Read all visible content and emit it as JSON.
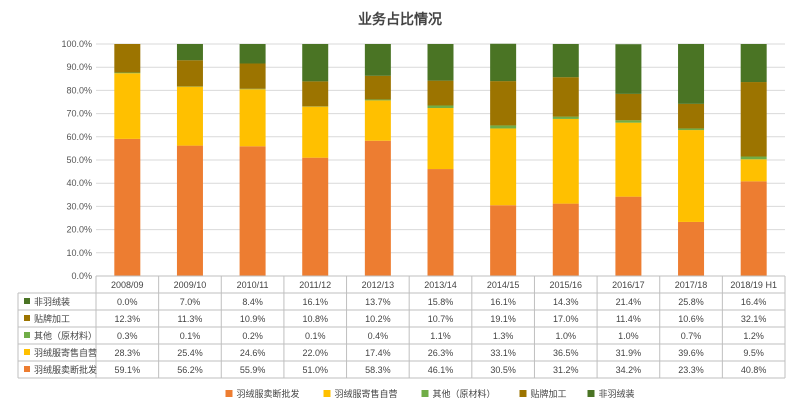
{
  "chart_data": {
    "type": "bar",
    "stacked": true,
    "title": "业务占比情况",
    "categories": [
      "2008/09",
      "2009/10",
      "2010/11",
      "2011/12",
      "2012/13",
      "2013/14",
      "2014/15",
      "2015/16",
      "2016/17",
      "2017/18",
      "2018/19 H1"
    ],
    "y_ticks": [
      "0.0%",
      "10.0%",
      "20.0%",
      "30.0%",
      "40.0%",
      "50.0%",
      "60.0%",
      "70.0%",
      "80.0%",
      "90.0%",
      "100.0%"
    ],
    "ylim": [
      0,
      100
    ],
    "grid": true,
    "legend_position": "bottom",
    "series": [
      {
        "name": "羽绒服卖断批发",
        "color": "#ED7D31",
        "values": [
          59.1,
          56.2,
          55.9,
          51.0,
          58.3,
          46.1,
          30.5,
          31.2,
          34.2,
          23.3,
          40.8
        ],
        "labels": [
          "59.1%",
          "56.2%",
          "55.9%",
          "51.0%",
          "58.3%",
          "46.1%",
          "30.5%",
          "31.2%",
          "34.2%",
          "23.3%",
          "40.8%"
        ]
      },
      {
        "name": "羽绒服寄售自营",
        "color": "#FFC000",
        "values": [
          28.3,
          25.4,
          24.6,
          22.0,
          17.4,
          26.3,
          33.1,
          36.5,
          31.9,
          39.6,
          9.5
        ],
        "labels": [
          "28.3%",
          "25.4%",
          "24.6%",
          "22.0%",
          "17.4%",
          "26.3%",
          "33.1%",
          "36.5%",
          "31.9%",
          "39.6%",
          "9.5%"
        ]
      },
      {
        "name": "其他（原材料）",
        "color": "#70AD47",
        "values": [
          0.3,
          0.1,
          0.2,
          0.1,
          0.4,
          1.1,
          1.3,
          1.0,
          1.0,
          0.7,
          1.2
        ],
        "labels": [
          "0.3%",
          "0.1%",
          "0.2%",
          "0.1%",
          "0.4%",
          "1.1%",
          "1.3%",
          "1.0%",
          "1.0%",
          "0.7%",
          "1.2%"
        ]
      },
      {
        "name": "贴牌加工",
        "color": "#9C7400",
        "values": [
          12.3,
          11.3,
          10.9,
          10.8,
          10.2,
          10.7,
          19.1,
          17.0,
          11.4,
          10.6,
          32.1
        ],
        "labels": [
          "12.3%",
          "11.3%",
          "10.9%",
          "10.8%",
          "10.2%",
          "10.7%",
          "19.1%",
          "17.0%",
          "11.4%",
          "10.6%",
          "32.1%"
        ]
      },
      {
        "name": "非羽绒装",
        "color": "#4A7424",
        "values": [
          0.0,
          7.0,
          8.4,
          16.1,
          13.7,
          15.8,
          16.1,
          14.3,
          21.4,
          25.8,
          16.4
        ],
        "labels": [
          "0.0%",
          "7.0%",
          "8.4%",
          "16.1%",
          "13.7%",
          "15.8%",
          "16.1%",
          "14.3%",
          "21.4%",
          "25.8%",
          "16.4%"
        ]
      }
    ],
    "table_rows": [
      {
        "label": "非羽绒装",
        "series_index": 4
      },
      {
        "label": "贴牌加工",
        "series_index": 3
      },
      {
        "label": "其他（原材料）",
        "series_index": 2
      },
      {
        "label": "羽绒服寄售自营",
        "series_index": 1
      },
      {
        "label": "羽绒服卖断批发",
        "series_index": 0
      }
    ],
    "legend_order": [
      0,
      1,
      2,
      3,
      4
    ]
  }
}
